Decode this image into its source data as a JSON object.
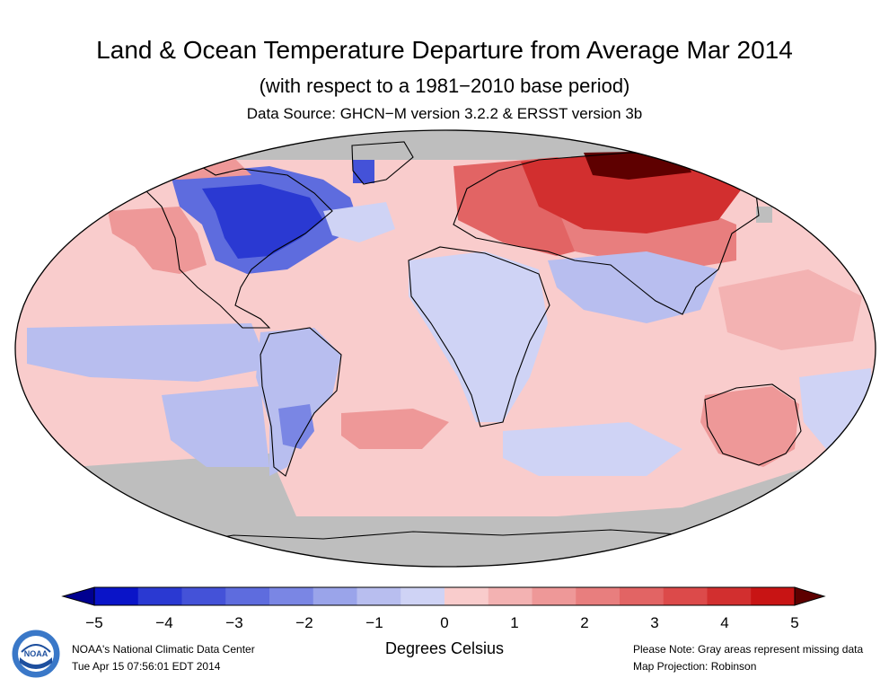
{
  "title": "Land & Ocean Temperature Departure from Average Mar 2014",
  "subtitle": "(with respect to a 1981−2010 base period)",
  "source": "Data Source: GHCN−M version 3.2.2 & ERSST version 3b",
  "colorbar": {
    "ticks": [
      "−5",
      "−4",
      "−3",
      "−2",
      "−1",
      "0",
      "1",
      "2",
      "3",
      "4",
      "5"
    ],
    "units": "Degrees Celsius",
    "min": -5,
    "max": 5,
    "colors": [
      "#0a14c8",
      "#2a39d2",
      "#4452d8",
      "#5e6cde",
      "#7a86e4",
      "#9aa4ea",
      "#b8beef",
      "#cfd3f5",
      "#f9cccc",
      "#f3b2b2",
      "#ee9898",
      "#e87e7e",
      "#e26464",
      "#dc4a4a",
      "#d22f2f",
      "#c81414"
    ],
    "extend_colors": {
      "low": "#000090",
      "high": "#5e0000"
    }
  },
  "missing_color": "#bebebe",
  "footer": {
    "org": "NOAA's National Climatic Data Center",
    "timestamp": "Tue Apr 15 07:56:01 EDT 2014",
    "note": "Please Note: Gray areas represent missing data",
    "projection": "Map Projection: Robinson",
    "logo_text": "NOAA"
  },
  "map": {
    "projection": "robinson",
    "background_anomaly": 0.6,
    "regions": [
      {
        "name": "missing-north-cap",
        "anomaly": null
      },
      {
        "name": "missing-south-ocean",
        "anomaly": null
      },
      {
        "name": "antarctica-missing",
        "anomaly": null
      },
      {
        "name": "east-north-america-cold",
        "anomaly": -4.2
      },
      {
        "name": "north-america-cold-halo",
        "anomaly": -2.6
      },
      {
        "name": "greenland-cold-patch",
        "anomaly": -3.5
      },
      {
        "name": "northwest-atlantic-cool",
        "anomaly": -0.6
      },
      {
        "name": "west-us-warm",
        "anomaly": 1.5
      },
      {
        "name": "alaska-warm",
        "anomaly": 1.6
      },
      {
        "name": "europe-warm",
        "anomaly": 3.0
      },
      {
        "name": "siberia-hot",
        "anomaly": 4.2
      },
      {
        "name": "siberia-peak",
        "anomaly": 5.2
      },
      {
        "name": "central-asia-warm",
        "anomaly": 2.2
      },
      {
        "name": "south-asia-cool",
        "anomaly": -0.7
      },
      {
        "name": "africa-cool",
        "anomaly": -0.6
      },
      {
        "name": "south-america-cool",
        "anomaly": -0.7
      },
      {
        "name": "argentina-cold",
        "anomaly": -2.3
      },
      {
        "name": "east-pacific-cool-band",
        "anomaly": -0.8
      },
      {
        "name": "southeast-pacific-cool",
        "anomaly": -0.8
      },
      {
        "name": "south-atlantic-warm",
        "anomaly": 1.6
      },
      {
        "name": "southern-indian-cool",
        "anomaly": -0.6
      },
      {
        "name": "australia-warm",
        "anomaly": 1.3
      },
      {
        "name": "southwest-pacific-cool",
        "anomaly": -0.6
      },
      {
        "name": "west-pacific-warm",
        "anomaly": 1.0
      },
      {
        "name": "sahara-missing",
        "anomaly": null
      },
      {
        "name": "nw-asia-missing",
        "anomaly": null
      }
    ]
  }
}
